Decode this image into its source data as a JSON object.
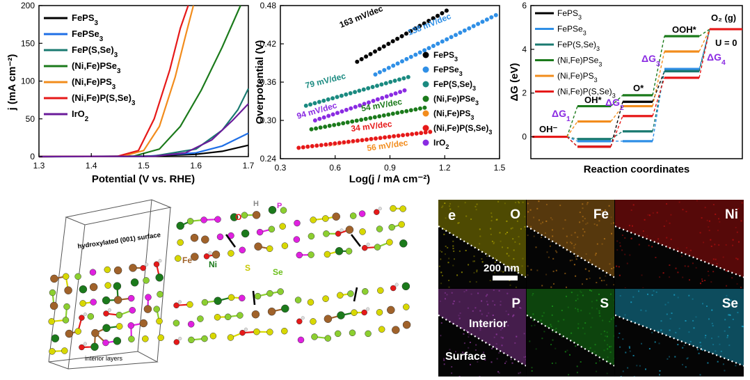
{
  "chart_data": [
    {
      "type": "line",
      "xlabel": "Potential (V vs. RHE)",
      "ylabel": "j (mA cm⁻²)",
      "xlim": [
        1.3,
        1.7
      ],
      "ylim": [
        0,
        200
      ],
      "x_ticks": [
        "1.3",
        "1.4",
        "1.5",
        "1.6",
        "1.7"
      ],
      "y_ticks": [
        "0",
        "50",
        "100",
        "150",
        "200"
      ],
      "legend": "top-left",
      "series": [
        {
          "name": "FePS3",
          "color": "#000000",
          "points": [
            [
              1.3,
              0
            ],
            [
              1.5,
              0.3
            ],
            [
              1.6,
              3
            ],
            [
              1.65,
              7
            ],
            [
              1.7,
              15
            ]
          ]
        },
        {
          "name": "FePSe3",
          "color": "#1f6fe6",
          "points": [
            [
              1.3,
              0
            ],
            [
              1.5,
              0.3
            ],
            [
              1.6,
              5
            ],
            [
              1.65,
              14
            ],
            [
              1.7,
              31
            ]
          ]
        },
        {
          "name": "FeP(S,Se)3",
          "color": "#1a7a70",
          "points": [
            [
              1.3,
              0
            ],
            [
              1.52,
              0.8
            ],
            [
              1.6,
              10
            ],
            [
              1.65,
              35
            ],
            [
              1.68,
              62
            ],
            [
              1.7,
              90
            ]
          ]
        },
        {
          "name": "(Ni,Fe)PSe3",
          "color": "#1b7a1b",
          "points": [
            [
              1.3,
              0
            ],
            [
              1.48,
              0.5
            ],
            [
              1.53,
              10
            ],
            [
              1.57,
              40
            ],
            [
              1.61,
              88
            ],
            [
              1.65,
              145
            ],
            [
              1.685,
              200
            ]
          ]
        },
        {
          "name": "(Ni,Fe)PS3",
          "color": "#f28c1c",
          "points": [
            [
              1.3,
              0
            ],
            [
              1.46,
              0.5
            ],
            [
              1.5,
              8
            ],
            [
              1.53,
              40
            ],
            [
              1.56,
              105
            ],
            [
              1.58,
              160
            ],
            [
              1.595,
              200
            ]
          ]
        },
        {
          "name": "(Ni,Fe)P(S,Se)3",
          "color": "#e61919",
          "points": [
            [
              1.3,
              0
            ],
            [
              1.45,
              0.5
            ],
            [
              1.49,
              8
            ],
            [
              1.52,
              50
            ],
            [
              1.55,
              115
            ],
            [
              1.57,
              170
            ],
            [
              1.585,
              200
            ]
          ]
        },
        {
          "name": "IrO2",
          "color": "#6a1b9a",
          "points": [
            [
              1.3,
              0
            ],
            [
              1.52,
              0.5
            ],
            [
              1.58,
              5
            ],
            [
              1.63,
              22
            ],
            [
              1.67,
              48
            ],
            [
              1.7,
              70
            ]
          ]
        }
      ]
    },
    {
      "type": "scatter",
      "xlabel": "Log(j / mA cm⁻²)",
      "ylabel": "Overpotential (V)",
      "xlim": [
        0.3,
        1.5
      ],
      "ylim": [
        0.24,
        0.48
      ],
      "x_ticks": [
        "0.3",
        "0.6",
        "0.9",
        "1.2",
        "1.5"
      ],
      "y_ticks": [
        "0.24",
        "0.30",
        "0.36",
        "0.42",
        "0.48"
      ],
      "legend": "right",
      "series": [
        {
          "name": "FePS3",
          "color": "#000000",
          "x_range": [
            0.72,
            1.21
          ],
          "y_range": [
            0.392,
            0.472
          ],
          "slope_label": "163 mV/dec"
        },
        {
          "name": "FePSe3",
          "color": "#2f8fe6",
          "x_range": [
            0.82,
            1.48
          ],
          "y_range": [
            0.372,
            0.465
          ],
          "slope_label": "138 mV/dec"
        },
        {
          "name": "FeP(S,Se)3",
          "color": "#1a8a80",
          "x_range": [
            0.44,
            1.0
          ],
          "y_range": [
            0.323,
            0.368
          ],
          "slope_label": "79 mV/dec"
        },
        {
          "name": "(Ni,Fe)PSe3",
          "color": "#1b7a1b",
          "x_range": [
            0.47,
            1.09
          ],
          "y_range": [
            0.286,
            0.32
          ],
          "slope_label": "54 mV/dec"
        },
        {
          "name": "(Ni,Fe)PS3",
          "color": "#f28c1c",
          "x_range": [
            0.57,
            1.12
          ],
          "y_range": [
            0.262,
            0.283
          ],
          "slope_label": "56 mV/dec"
        },
        {
          "name": "(Ni,Fe)P(S,Se)3",
          "color": "#e61919",
          "x_range": [
            0.4,
            1.12
          ],
          "y_range": [
            0.257,
            0.282
          ],
          "slope_label": "34 mV/dec"
        },
        {
          "name": "IrO2",
          "color": "#8a2be2",
          "x_range": [
            0.49,
            0.98
          ],
          "y_range": [
            0.3,
            0.347
          ],
          "slope_label": "94 mV/dec"
        }
      ]
    },
    {
      "type": "line",
      "xlabel": "Reaction coordinates",
      "ylabel": "ΔG (eV)",
      "ylim": [
        -1,
        6
      ],
      "y_ticks": [
        "0",
        "2",
        "4",
        "6"
      ],
      "stage_labels": [
        "OH⁻",
        "OH*",
        "O*",
        "OOH*",
        "O₂ (g)"
      ],
      "step_labels": [
        "ΔG1",
        "ΔG2",
        "ΔG3",
        "ΔG4"
      ],
      "annotation": "U = 0",
      "legend": "top-left",
      "series": [
        {
          "name": "FePS3",
          "color": "#000000",
          "values": [
            0,
            -0.45,
            1.6,
            3.0,
            4.92
          ]
        },
        {
          "name": "FePSe3",
          "color": "#2f8fe6",
          "values": [
            0,
            -0.2,
            -0.2,
            3.1,
            4.92
          ]
        },
        {
          "name": "FeP(S,Se)3",
          "color": "#1a7a70",
          "values": [
            0,
            -0.1,
            0.25,
            3.0,
            4.92
          ]
        },
        {
          "name": "(Ni,Fe)PSe3",
          "color": "#1b7a1b",
          "values": [
            0,
            1.4,
            1.9,
            4.6,
            4.92
          ]
        },
        {
          "name": "(Ni,Fe)PS3",
          "color": "#f28c1c",
          "values": [
            0,
            0.7,
            1.4,
            3.9,
            4.92
          ]
        },
        {
          "name": "(Ni,Fe)P(S,Se)3",
          "color": "#e61919",
          "values": [
            0,
            -0.45,
            0.95,
            2.7,
            4.92
          ]
        }
      ]
    }
  ],
  "structures": {
    "labels": {
      "surface": "hydroxylated (001) surface",
      "interior": "interior layers",
      "fe": "Fe",
      "ni": "Ni",
      "s": "S",
      "se": "Se",
      "o": "O",
      "h": "H",
      "p": "P"
    }
  },
  "eds": {
    "panel_letter": "e",
    "scale_bar": "200 nm",
    "interior_label": "Interior",
    "surface_label": "Surface",
    "tiles": [
      {
        "element": "O",
        "color": "#b5ac00"
      },
      {
        "element": "Fe",
        "color": "#c9801a"
      },
      {
        "element": "Ni",
        "color": "#c81010"
      },
      {
        "element": "P",
        "color": "#a040b0"
      },
      {
        "element": "S",
        "color": "#1a9e1a"
      },
      {
        "element": "Se",
        "color": "#1ab0d8"
      }
    ]
  }
}
